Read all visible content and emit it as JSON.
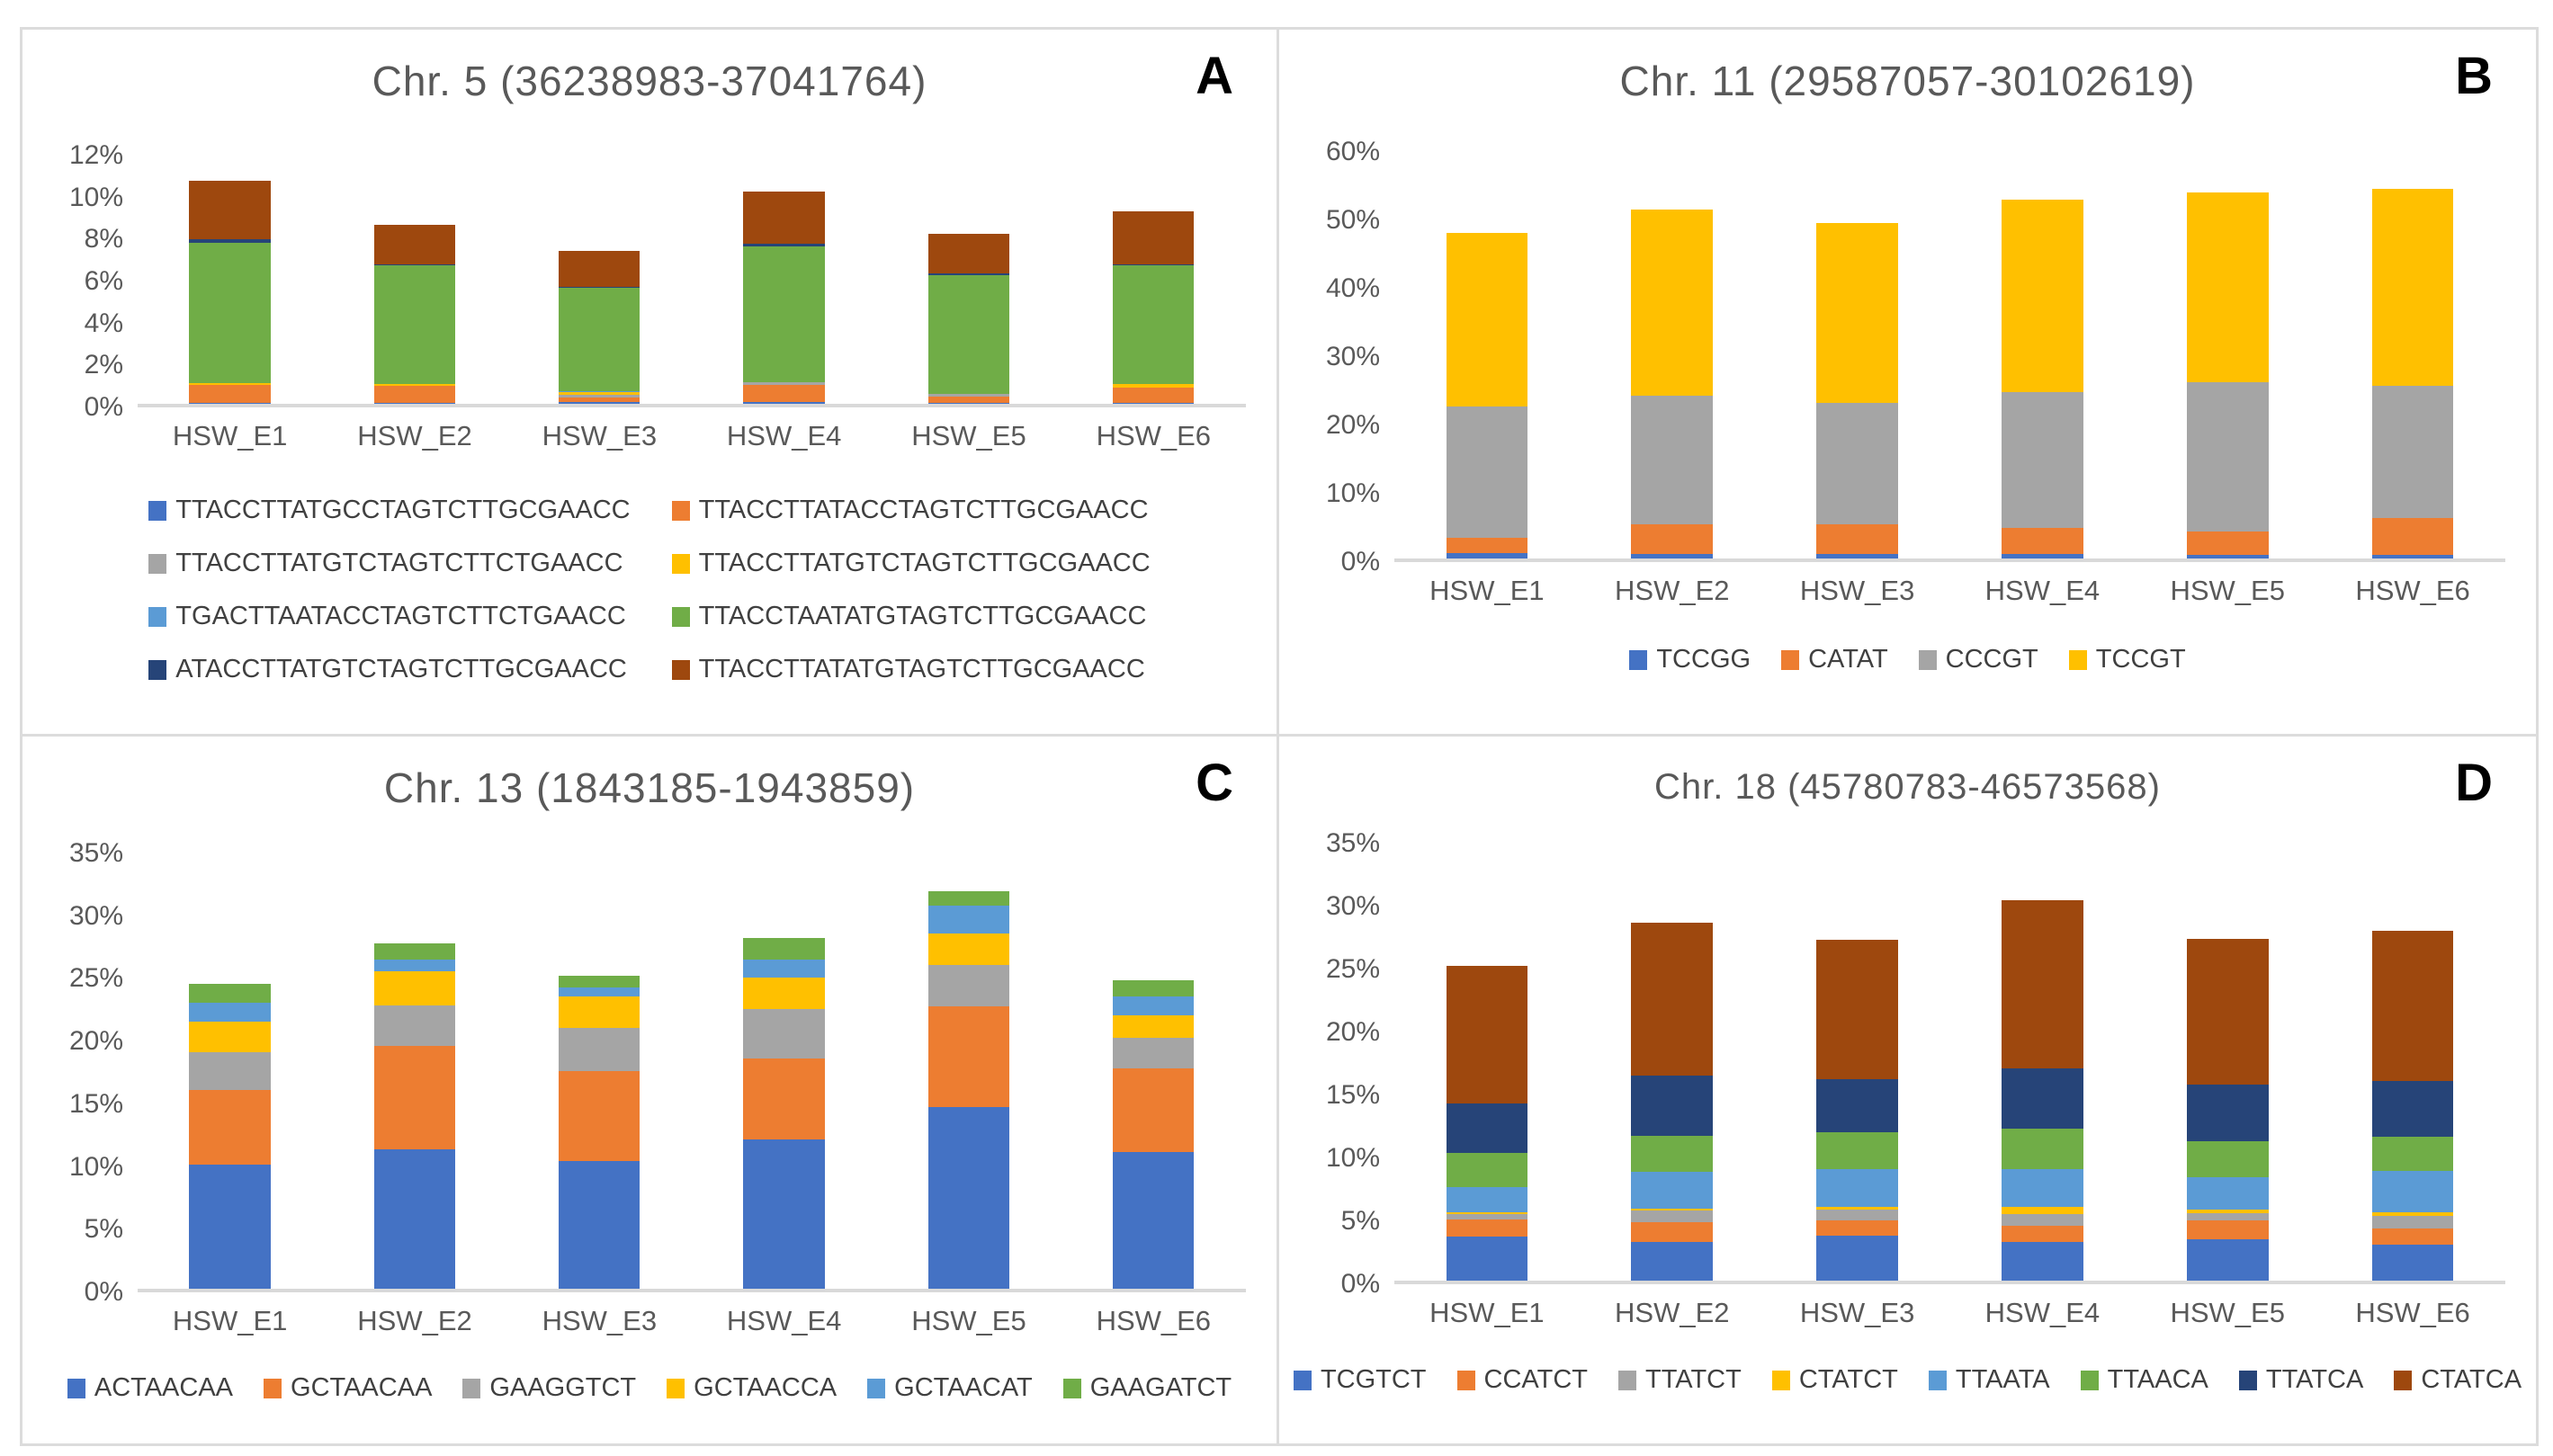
{
  "figure": {
    "background": "#ffffff",
    "frame_color": "#dcdcdc",
    "text_color": "#595959",
    "legend_text_color": "#404040",
    "panel_letter_color": "#000000",
    "axis_line_color": "#d9d9d9"
  },
  "chart_data": [
    {
      "type": "bar",
      "stacked": true,
      "panel_label": "A",
      "title": "Chr. 5 (36238983-37041764)",
      "categories": [
        "HSW_E1",
        "HSW_E2",
        "HSW_E3",
        "HSW_E4",
        "HSW_E5",
        "HSW_E6"
      ],
      "ylim": [
        0,
        12
      ],
      "y_ticks": [
        "12%",
        "10%",
        "8%",
        "6%",
        "4%",
        "2%",
        "0%"
      ],
      "grid": false,
      "legend_position": "bottom",
      "legend_columns": 2,
      "series": [
        {
          "name": "TTACCTTATGCCTAGTCTTGCGAACC",
          "color": "#4472C4",
          "values": [
            0.05,
            0.05,
            0.1,
            0.1,
            0.05,
            0.05
          ]
        },
        {
          "name": "TTACCTTATACCTAGTCTTGCGAACC",
          "color": "#ED7D31",
          "values": [
            0.85,
            0.8,
            0.2,
            0.8,
            0.3,
            0.75
          ]
        },
        {
          "name": "TTACCTTATGTCTAGTCTTCTGAACC",
          "color": "#A5A5A5",
          "values": [
            0.0,
            0.0,
            0.15,
            0.15,
            0.15,
            0.0
          ]
        },
        {
          "name": "TTACCTTATGTCTAGTCTTGCGAACC",
          "color": "#FFC000",
          "values": [
            0.1,
            0.1,
            0.1,
            0.0,
            0.0,
            0.15
          ]
        },
        {
          "name": "TGACTTAATACCTAGTCTTCTGAACC",
          "color": "#5B9BD5",
          "values": [
            0.0,
            0.0,
            0.05,
            0.0,
            0.0,
            0.0
          ]
        },
        {
          "name": "TTACCTAATATGTAGTCTTGCGAACC",
          "color": "#70AD47",
          "values": [
            6.8,
            5.75,
            5.0,
            6.55,
            5.7,
            5.75
          ]
        },
        {
          "name": "ATACCTTATGTCTAGTCTTGCGAACC",
          "color": "#264478",
          "values": [
            0.15,
            0.05,
            0.05,
            0.15,
            0.1,
            0.05
          ]
        },
        {
          "name": "TTACCTTATATGTAGTCTTGCGAACC",
          "color": "#9E480E",
          "values": [
            2.85,
            1.9,
            1.75,
            2.5,
            1.9,
            2.55
          ]
        }
      ]
    },
    {
      "type": "bar",
      "stacked": true,
      "panel_label": "B",
      "title": "Chr. 11 (29587057-30102619)",
      "categories": [
        "HSW_E1",
        "HSW_E2",
        "HSW_E3",
        "HSW_E4",
        "HSW_E5",
        "HSW_E6"
      ],
      "ylim": [
        0,
        60
      ],
      "y_ticks": [
        "60%",
        "50%",
        "40%",
        "30%",
        "20%",
        "10%",
        "0%"
      ],
      "grid": false,
      "legend_position": "bottom",
      "legend_columns": 1,
      "series": [
        {
          "name": "TCCGG",
          "color": "#4472C4",
          "values": [
            0.8,
            0.6,
            0.7,
            0.7,
            0.5,
            0.5
          ]
        },
        {
          "name": "CATAT",
          "color": "#ED7D31",
          "values": [
            2.2,
            4.4,
            4.3,
            3.8,
            3.5,
            5.5
          ]
        },
        {
          "name": "CCCGT",
          "color": "#A5A5A5",
          "values": [
            19.5,
            19.0,
            18.0,
            20.0,
            22.0,
            19.5
          ]
        },
        {
          "name": "TCCGT",
          "color": "#FFC000",
          "values": [
            25.5,
            27.5,
            26.5,
            28.5,
            28.0,
            29.0
          ]
        }
      ]
    },
    {
      "type": "bar",
      "stacked": true,
      "panel_label": "C",
      "title": "Chr. 13 (1843185-1943859)",
      "categories": [
        "HSW_E1",
        "HSW_E2",
        "HSW_E3",
        "HSW_E4",
        "HSW_E5",
        "HSW_E6"
      ],
      "ylim": [
        0,
        35
      ],
      "y_ticks": [
        "35%",
        "30%",
        "25%",
        "20%",
        "15%",
        "10%",
        "5%",
        "0%"
      ],
      "grid": false,
      "legend_position": "bottom",
      "legend_columns": 1,
      "series": [
        {
          "name": "ACTAACAA",
          "color": "#4472C4",
          "values": [
            10.0,
            11.2,
            10.3,
            12.0,
            14.6,
            11.0
          ]
        },
        {
          "name": "GCTAACAA",
          "color": "#ED7D31",
          "values": [
            6.0,
            8.3,
            7.2,
            6.5,
            8.1,
            6.7
          ]
        },
        {
          "name": "GAAGGTCT",
          "color": "#A5A5A5",
          "values": [
            3.0,
            3.3,
            3.5,
            4.0,
            3.3,
            2.5
          ]
        },
        {
          "name": "GCTAACCA",
          "color": "#FFC000",
          "values": [
            2.5,
            2.7,
            2.5,
            2.5,
            2.6,
            1.8
          ]
        },
        {
          "name": "GCTAACAT",
          "color": "#5B9BD5",
          "values": [
            1.5,
            1.0,
            0.7,
            1.5,
            2.2,
            1.5
          ]
        },
        {
          "name": "GAAGATCT",
          "color": "#70AD47",
          "values": [
            1.5,
            1.3,
            1.0,
            1.7,
            1.2,
            1.3
          ]
        }
      ]
    },
    {
      "type": "bar",
      "stacked": true,
      "panel_label": "D",
      "title": "Chr. 18 (45780783-46573568)",
      "categories": [
        "HSW_E1",
        "HSW_E2",
        "HSW_E3",
        "HSW_E4",
        "HSW_E5",
        "HSW_E6"
      ],
      "ylim": [
        0,
        35
      ],
      "y_ticks": [
        "35%",
        "30%",
        "25%",
        "20%",
        "15%",
        "10%",
        "5%",
        "0%"
      ],
      "grid": false,
      "legend_position": "bottom",
      "legend_columns": 1,
      "series": [
        {
          "name": "TCGTCT",
          "color": "#4472C4",
          "values": [
            3.5,
            3.1,
            3.6,
            3.1,
            3.3,
            2.9
          ]
        },
        {
          "name": "CCATCT",
          "color": "#ED7D31",
          "values": [
            1.4,
            1.6,
            1.2,
            1.3,
            1.5,
            1.3
          ]
        },
        {
          "name": "TTATCT",
          "color": "#A5A5A5",
          "values": [
            0.4,
            0.9,
            0.9,
            0.9,
            0.6,
            1.0
          ]
        },
        {
          "name": "CTATCT",
          "color": "#FFC000",
          "values": [
            0.2,
            0.2,
            0.2,
            0.6,
            0.3,
            0.3
          ]
        },
        {
          "name": "TTAATA",
          "color": "#5B9BD5",
          "values": [
            2.0,
            2.9,
            3.0,
            3.0,
            2.6,
            3.3
          ]
        },
        {
          "name": "TTAACA",
          "color": "#70AD47",
          "values": [
            2.7,
            2.9,
            3.0,
            3.3,
            2.9,
            2.7
          ]
        },
        {
          "name": "TTATCA",
          "color": "#264478",
          "values": [
            4.0,
            4.8,
            4.2,
            4.8,
            4.5,
            4.5
          ]
        },
        {
          "name": "CTATCA",
          "color": "#9E480E",
          "values": [
            11.0,
            12.3,
            11.2,
            13.5,
            11.7,
            12.0
          ]
        }
      ]
    }
  ]
}
